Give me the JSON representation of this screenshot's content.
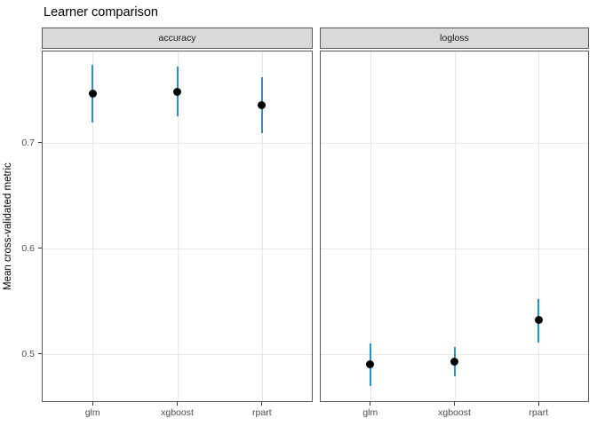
{
  "title": "Learner comparison",
  "ylabel": "Mean cross-validated metric",
  "colors": {
    "point": "#000000",
    "errorbar": "#2b90c4",
    "grid": "#e8e8e8",
    "strip_fill": "#d9d9d9",
    "panel_border": "#595959",
    "tick_mark": "#333333",
    "tick_label": "#4d4d4d"
  },
  "chart_data": {
    "type": "scatter",
    "title": "Learner comparison",
    "xlabel": "",
    "ylabel": "Mean cross-validated metric",
    "legend": "none",
    "grid": "major-only",
    "yticks": [
      0.7,
      0.6,
      0.5
    ],
    "ylim": [
      0.4547,
      0.7868
    ],
    "facets": [
      {
        "label": "accuracy",
        "categories": [
          "glm",
          "xgboost",
          "rpart"
        ],
        "series": [
          {
            "name": "mean",
            "values": [
              0.746,
              0.748,
              0.735
            ]
          }
        ],
        "ci_lower": [
          0.719,
          0.725,
          0.709
        ],
        "ci_upper": [
          0.773,
          0.772,
          0.762
        ]
      },
      {
        "label": "logloss",
        "categories": [
          "glm",
          "xgboost",
          "rpart"
        ],
        "series": [
          {
            "name": "mean",
            "values": [
              0.49,
              0.493,
              0.532
            ]
          }
        ],
        "ci_lower": [
          0.47,
          0.479,
          0.511
        ],
        "ci_upper": [
          0.51,
          0.507,
          0.552
        ]
      }
    ]
  }
}
